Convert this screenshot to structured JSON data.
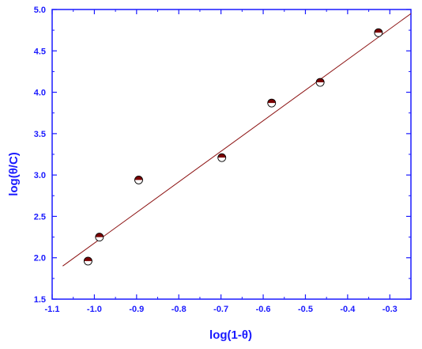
{
  "chart_data": {
    "type": "scatter",
    "title": "",
    "xlabel": "log(1-θ)",
    "ylabel": "log(θ/C)",
    "xlim": [
      -1.1,
      -0.25
    ],
    "ylim": [
      1.5,
      5.0
    ],
    "xticks": [
      -1.1,
      -1.0,
      -0.9,
      -0.8,
      -0.7,
      -0.6,
      -0.5,
      -0.4,
      -0.3
    ],
    "xtick_labels": [
      "-1.1",
      "-1.0",
      "-0.9",
      "-0.8",
      "-0.7",
      "-0.6",
      "-0.5",
      "-0.4",
      "-0.3"
    ],
    "yticks": [
      1.5,
      2.0,
      2.5,
      3.0,
      3.5,
      4.0,
      4.5,
      5.0
    ],
    "ytick_labels": [
      "1.5",
      "2.0",
      "2.5",
      "3.0",
      "3.5",
      "4.0",
      "4.5",
      "5.0"
    ],
    "points": {
      "x": [
        -1.015,
        -0.988,
        -0.895,
        -0.698,
        -0.58,
        -0.465,
        -0.327
      ],
      "y": [
        1.96,
        2.25,
        2.94,
        3.21,
        3.87,
        4.12,
        4.72
      ]
    },
    "fit_line": {
      "x": [
        -1.075,
        -0.25
      ],
      "y": [
        1.9,
        4.95
      ]
    },
    "grid": false,
    "legend": "none",
    "colors": {
      "axis": "#1a1aff",
      "marker_fill": "#7a0000",
      "marker_edge": "#000000",
      "fit_line": "#8b1010"
    }
  }
}
